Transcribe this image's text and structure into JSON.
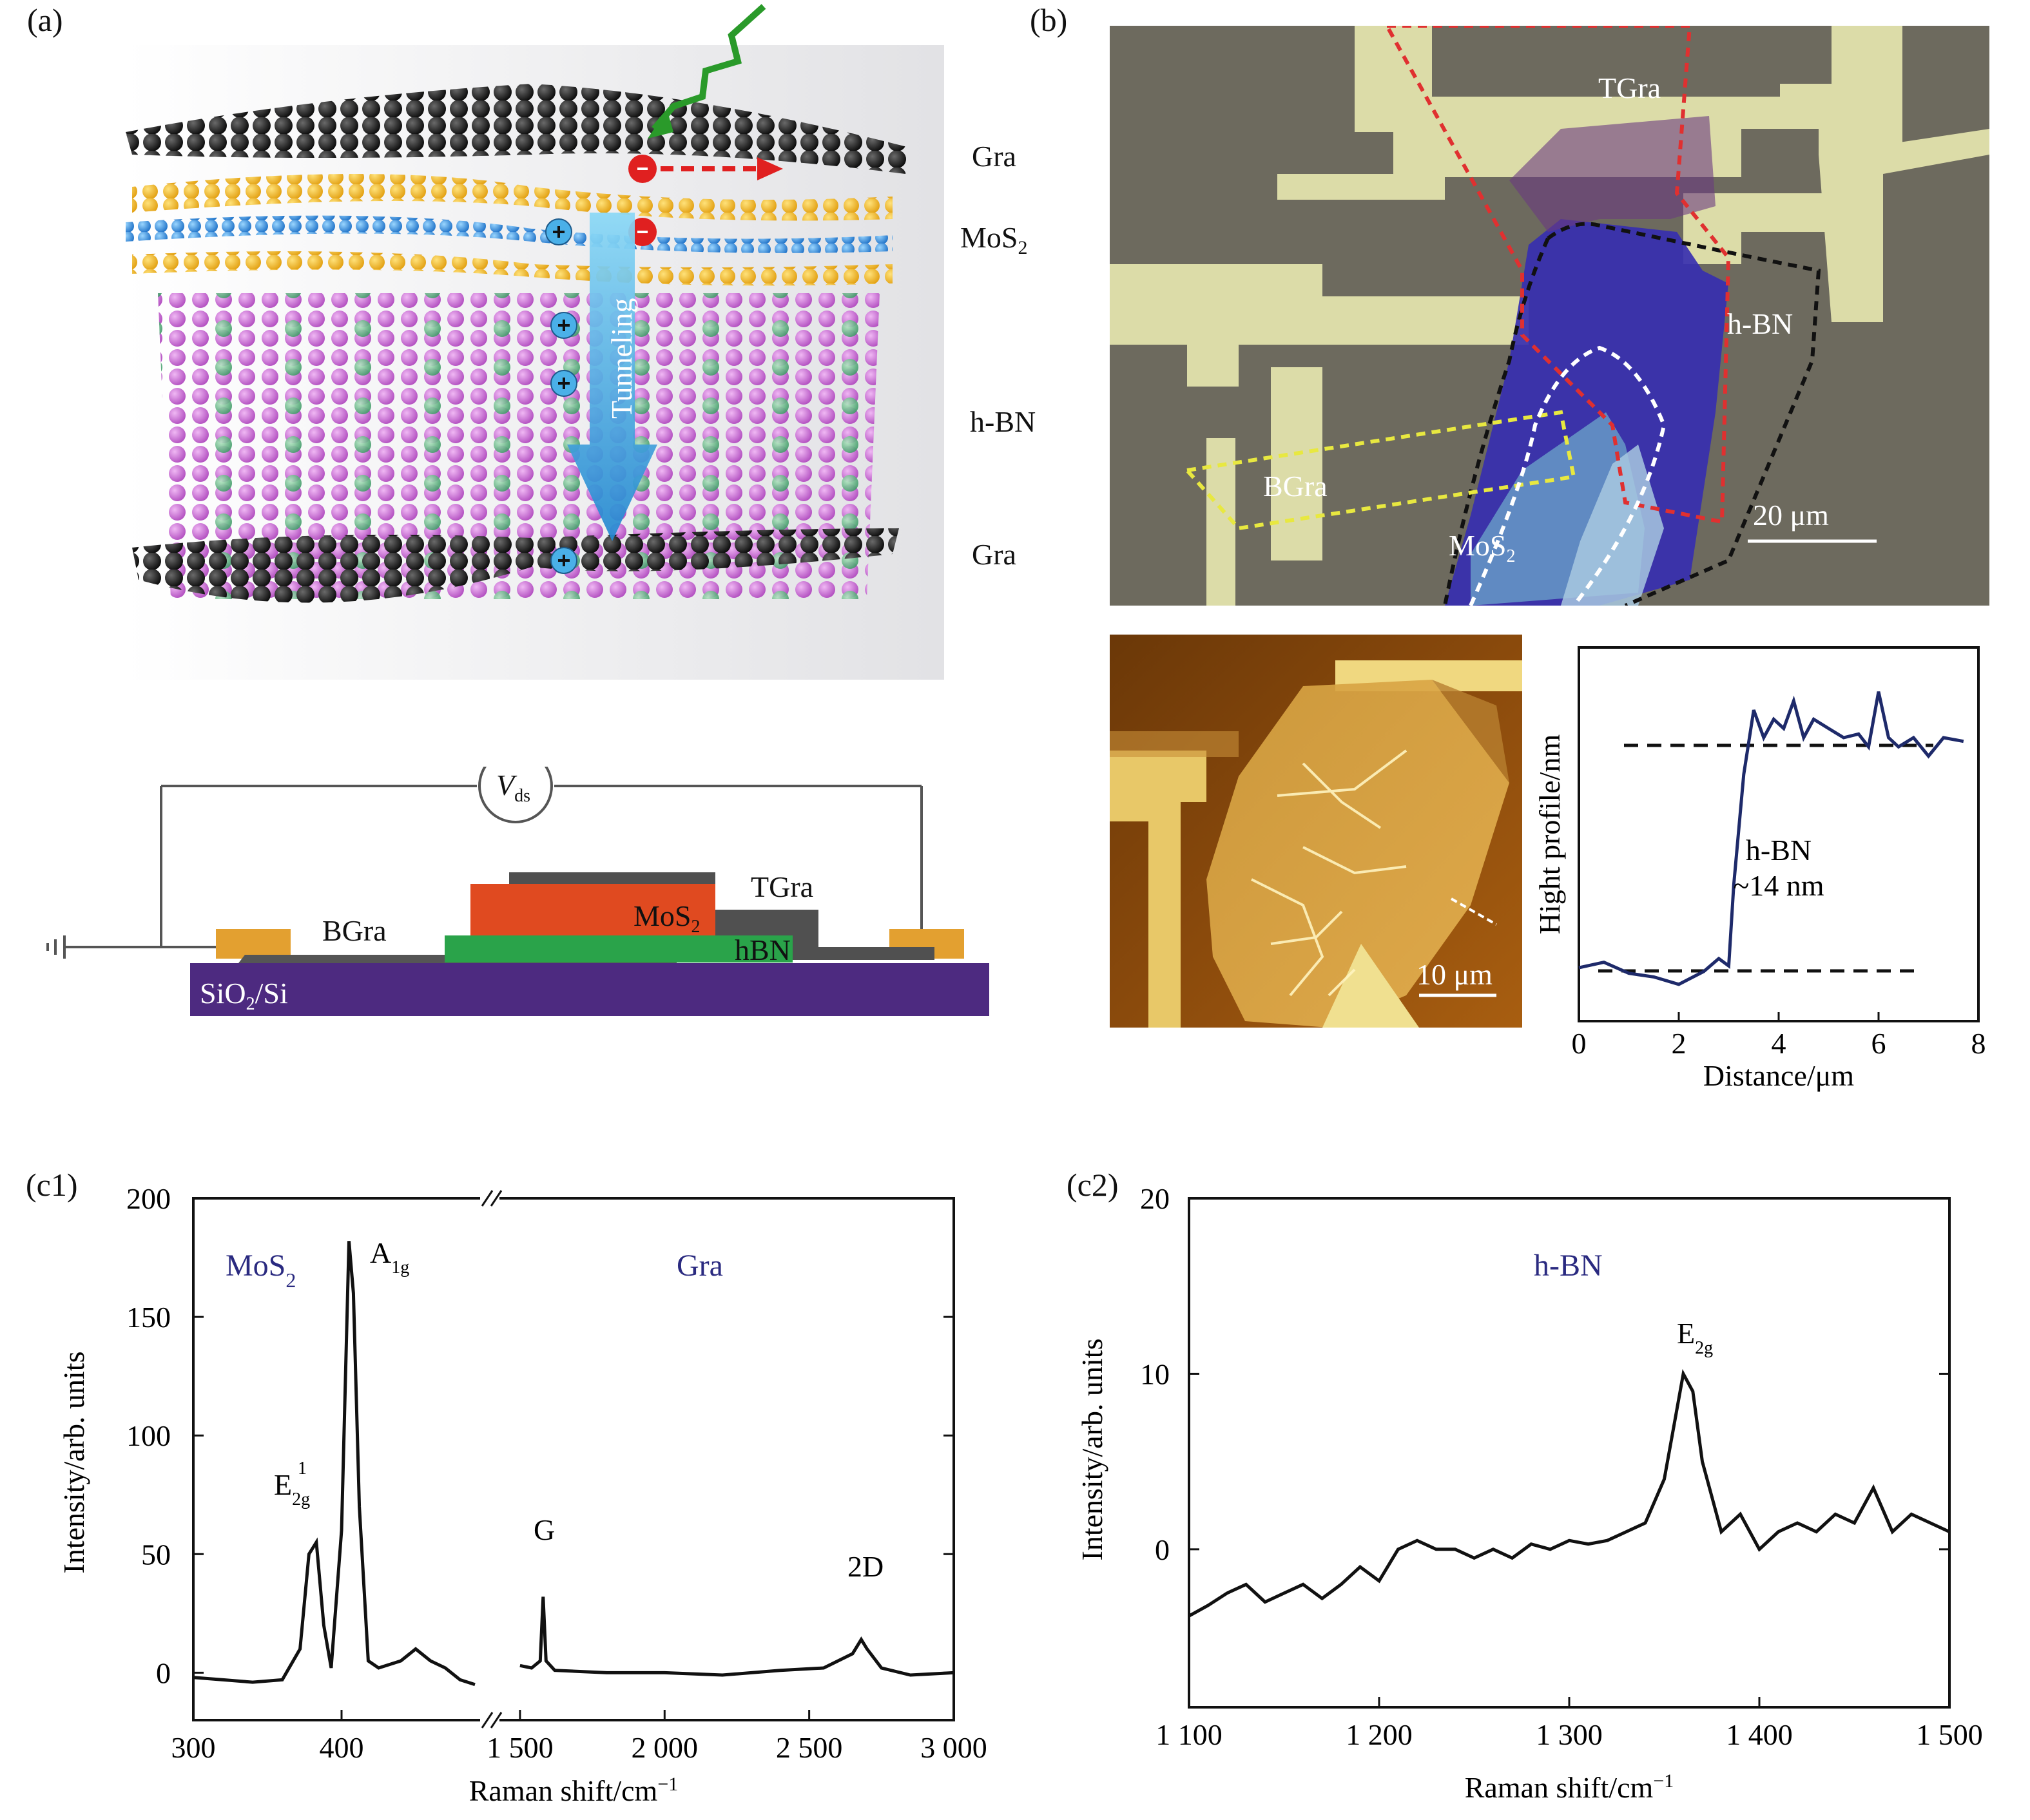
{
  "panel_a": {
    "label": "(a)",
    "layers": {
      "gra_top": "Gra",
      "mos2": "MoS",
      "mos2_sub": "2",
      "hbn": "h-BN",
      "gra_bottom": "Gra"
    },
    "arrow_label": "Tunneling",
    "circuit": {
      "vds": "V",
      "vds_sub": "ds",
      "tgra": "TGra",
      "mos2": "MoS",
      "mos2_sub": "2",
      "bgra": "BGra",
      "hbn": "hBN",
      "substrate": "SiO",
      "substrate_sub": "2",
      "substrate_rest": "/Si"
    }
  },
  "panel_b": {
    "label": "(b)",
    "optical": {
      "tgra": "TGra",
      "hbn": "h-BN",
      "bgra": "BGra",
      "mos2": "MoS",
      "mos2_sub": "2",
      "scale": "20 μm"
    },
    "afm": {
      "scale": "10 μm"
    },
    "profile": {
      "annot_1": "h-BN",
      "annot_2": "~14 nm",
      "xlabel": "Distance/μm",
      "ylabel": "Hight profile/nm",
      "xticks": [
        "0",
        "2",
        "4",
        "6",
        "8"
      ]
    }
  },
  "panel_c1": {
    "label": "(c1)",
    "mos2_label": "MoS",
    "mos2_sub": "2",
    "gra_label": "Gra",
    "xlabel": "Raman shift/cm",
    "xlabel_sup": "−1",
    "ylabel": "Intensity/arb. units",
    "xticks": [
      "300",
      "400",
      "1 500",
      "2 000",
      "2 500",
      "3 000"
    ],
    "yticks": [
      "0",
      "50",
      "100",
      "150",
      "200"
    ],
    "peaks": {
      "e2g": "E",
      "e2g_sub": "2g",
      "e2g_sup": "1",
      "a1g": "A",
      "a1g_sub": "1g",
      "g": "G",
      "d2": "2D"
    }
  },
  "panel_c2": {
    "label": "(c2)",
    "hbn_label": "h-BN",
    "xlabel": "Raman shift/cm",
    "xlabel_sup": "−1",
    "ylabel": "Intensity/arb. units",
    "xticks": [
      "1 100",
      "1 200",
      "1 300",
      "1 400",
      "1 500"
    ],
    "yticks": [
      "0",
      "10",
      "20"
    ],
    "peak": "E",
    "peak_sub": "2g"
  },
  "colors": {
    "mos2_text": "#2a2a80",
    "curve": "#111111",
    "profile": "#1e2a6a"
  },
  "chart_data": [
    {
      "type": "line",
      "xlabel": "Distance/μm",
      "ylabel": "Hight profile/nm",
      "xlim": [
        0,
        8
      ],
      "x": [
        0,
        0.5,
        1,
        1.5,
        2,
        2.5,
        2.8,
        3.0,
        3.1,
        3.3,
        3.5,
        3.7,
        3.9,
        4.1,
        4.3,
        4.5,
        4.7,
        5.0,
        5.3,
        5.6,
        5.8,
        6.0,
        6.2,
        6.4,
        6.7,
        7.0,
        7.3,
        7.7
      ],
      "y": [
        1.5,
        1.8,
        1.2,
        1.0,
        0.6,
        1.3,
        2.0,
        1.6,
        6,
        12,
        15.5,
        14,
        15,
        14.5,
        16,
        14,
        15,
        14.5,
        14,
        14.2,
        13.5,
        16.5,
        14,
        13.5,
        14,
        13,
        14,
        13.8
      ]
    },
    {
      "type": "line",
      "xlabel": "Raman shift/cm−1",
      "ylabel": "Intensity/arb. units",
      "ylim": [
        -20,
        200
      ],
      "broken_x_axis": true,
      "series": [
        {
          "x": [
            300,
            320,
            340,
            360,
            372,
            378,
            383,
            388,
            393,
            400,
            405,
            408,
            412,
            418,
            425,
            440,
            450,
            460,
            470,
            480,
            490
          ],
          "y": [
            -2,
            -3,
            -4,
            -3,
            10,
            50,
            55,
            20,
            2,
            60,
            182,
            160,
            70,
            5,
            2,
            5,
            10,
            5,
            2,
            -3,
            -5
          ]
        },
        {
          "x": [
            1500,
            1540,
            1570,
            1580,
            1590,
            1620,
            1800,
            2000,
            2200,
            2400,
            2550,
            2650,
            2680,
            2700,
            2750,
            2850,
            3000
          ],
          "y": [
            3,
            2,
            5,
            32,
            5,
            1,
            0,
            0,
            -1,
            1,
            2,
            8,
            14,
            10,
            2,
            -1,
            0
          ]
        }
      ]
    },
    {
      "type": "line",
      "xlabel": "Raman shift/cm−1",
      "ylabel": "Intensity/arb. units",
      "xlim": [
        1100,
        1500
      ],
      "ylim": [
        -9,
        20
      ],
      "x": [
        1100,
        1110,
        1120,
        1130,
        1140,
        1150,
        1160,
        1170,
        1180,
        1190,
        1200,
        1210,
        1220,
        1230,
        1240,
        1250,
        1260,
        1270,
        1280,
        1290,
        1300,
        1310,
        1320,
        1330,
        1340,
        1350,
        1355,
        1360,
        1365,
        1370,
        1375,
        1380,
        1390,
        1400,
        1410,
        1420,
        1430,
        1440,
        1450,
        1460,
        1470,
        1480,
        1490,
        1500
      ],
      "y": [
        -3.8,
        -3.2,
        -2.5,
        -2,
        -3,
        -2.5,
        -2,
        -2.8,
        -2,
        -1,
        -1.8,
        0,
        0.5,
        0,
        0,
        -0.5,
        0,
        -0.5,
        0.3,
        0,
        0.5,
        0.3,
        0.5,
        1,
        1.5,
        4,
        7,
        10,
        9,
        5,
        3,
        1,
        2,
        0,
        1,
        1.5,
        1,
        2,
        1.5,
        3.5,
        1,
        2,
        1.5,
        1
      ]
    }
  ]
}
